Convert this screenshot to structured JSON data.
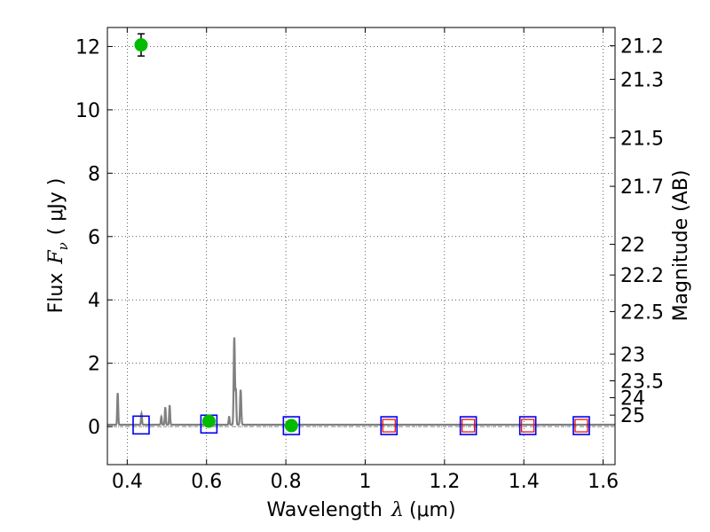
{
  "chart_data": {
    "type": "scatter",
    "xlabel_prefix": "Wavelength",
    "xlabel_symbol": "λ",
    "xlabel_unit": "(μm)",
    "ylabel_prefix": "Flux",
    "ylabel_symbol": "F",
    "ylabel_subscript": "ν",
    "ylabel_unit": "( μJy )",
    "y2label": "Magnitude (AB)",
    "xlim": [
      0.35,
      1.63
    ],
    "ylim": [
      -1.2,
      12.6
    ],
    "grid": true,
    "xticks": [
      {
        "value": 0.4,
        "label": "0.4"
      },
      {
        "value": 0.6,
        "label": "0.6"
      },
      {
        "value": 0.8,
        "label": "0.8"
      },
      {
        "value": 1.0,
        "label": "1"
      },
      {
        "value": 1.2,
        "label": "1.2"
      },
      {
        "value": 1.4,
        "label": "1.4"
      },
      {
        "value": 1.6,
        "label": "1.6"
      }
    ],
    "yticks": [
      {
        "value": 0,
        "label": "0"
      },
      {
        "value": 2,
        "label": "2"
      },
      {
        "value": 4,
        "label": "4"
      },
      {
        "value": 6,
        "label": "6"
      },
      {
        "value": 8,
        "label": "8"
      },
      {
        "value": 10,
        "label": "10"
      },
      {
        "value": 12,
        "label": "12"
      }
    ],
    "magnitude_ticks": [
      {
        "mag": 21.2,
        "label": "21.2"
      },
      {
        "mag": 21.3,
        "label": "21.3"
      },
      {
        "mag": 21.5,
        "label": "21.5"
      },
      {
        "mag": 21.7,
        "label": "21.7"
      },
      {
        "mag": 22.0,
        "label": "22"
      },
      {
        "mag": 22.2,
        "label": "22.2"
      },
      {
        "mag": 22.5,
        "label": "22.5"
      },
      {
        "mag": 23.0,
        "label": "23"
      },
      {
        "mag": 23.5,
        "label": "23.5"
      },
      {
        "mag": 24.0,
        "label": "24"
      },
      {
        "mag": 25.0,
        "label": "25"
      }
    ],
    "observed_points": [
      {
        "x": 0.435,
        "y": 12.05,
        "yerr": 0.35
      },
      {
        "x": 0.606,
        "y": 0.17,
        "yerr": 0.08
      },
      {
        "x": 0.814,
        "y": 0.03,
        "yerr": 0.06
      }
    ],
    "model_band_fluxes": [
      {
        "x": 0.435,
        "y": 0.05
      },
      {
        "x": 0.606,
        "y": 0.08
      },
      {
        "x": 0.814,
        "y": 0.03
      },
      {
        "x": 1.06,
        "y": 0.03
      },
      {
        "x": 1.26,
        "y": 0.03
      },
      {
        "x": 1.41,
        "y": 0.03
      },
      {
        "x": 1.545,
        "y": 0.03
      }
    ],
    "upper_limit_points": [
      {
        "x": 1.06,
        "y": 0.03
      },
      {
        "x": 1.26,
        "y": 0.03
      },
      {
        "x": 1.41,
        "y": 0.03
      },
      {
        "x": 1.545,
        "y": 0.03
      }
    ],
    "template_spectrum": {
      "continuum": 0.06,
      "lines": [
        {
          "x": 0.376,
          "peak": 1.0,
          "width": 0.0012
        },
        {
          "x": 0.436,
          "peak": 0.35,
          "width": 0.0012
        },
        {
          "x": 0.486,
          "peak": 0.25,
          "width": 0.0012
        },
        {
          "x": 0.496,
          "peak": 0.55,
          "width": 0.0012
        },
        {
          "x": 0.507,
          "peak": 0.6,
          "width": 0.0012
        },
        {
          "x": 0.657,
          "peak": 0.25,
          "width": 0.0012
        },
        {
          "x": 0.67,
          "peak": 2.75,
          "width": 0.0015
        },
        {
          "x": 0.674,
          "peak": 1.05,
          "width": 0.0012
        },
        {
          "x": 0.686,
          "peak": 1.1,
          "width": 0.0015
        }
      ]
    },
    "colors": {
      "observed": "#00bb00",
      "model_band": "#0000ee",
      "upper_limit": "#ee0000",
      "spectrum": "#808080"
    }
  }
}
